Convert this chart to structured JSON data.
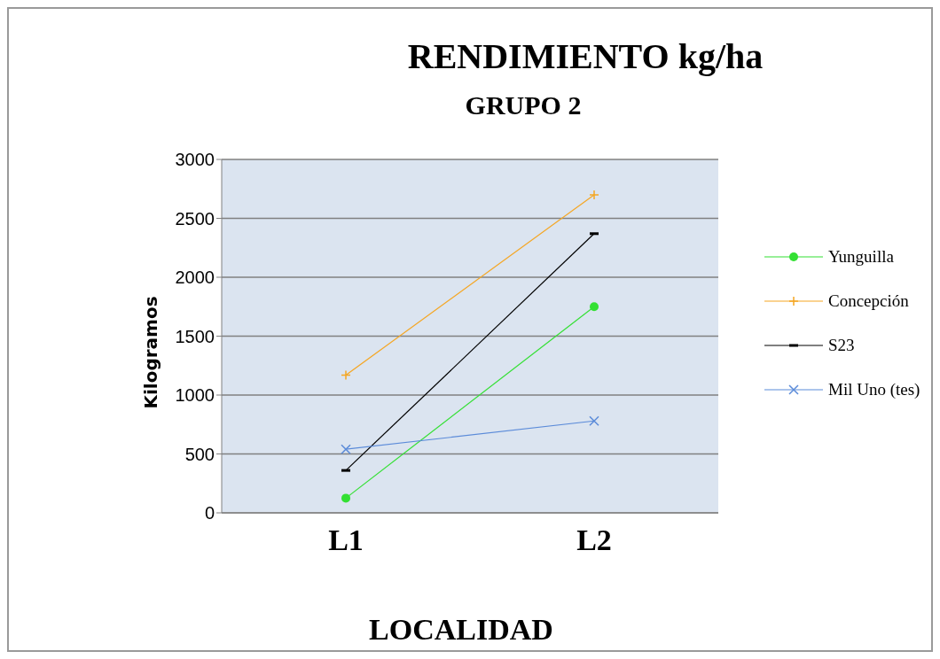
{
  "chart_data": {
    "type": "line",
    "title": "RENDIMIENTO kg/ha",
    "subtitle": "GRUPO 2",
    "xlabel": "LOCALIDAD",
    "ylabel": "Kilogramos",
    "categories": [
      "L1",
      "L2"
    ],
    "series": [
      {
        "name": "Yunguilla",
        "color": "#33e033",
        "values": [
          125,
          1750
        ],
        "marker": "circle"
      },
      {
        "name": "Concepción",
        "color": "#f5a623",
        "values": [
          1170,
          2700
        ],
        "marker": "cross"
      },
      {
        "name": "S23",
        "color": "#000000",
        "values": [
          360,
          2370
        ],
        "marker": "square"
      },
      {
        "name": "Mil Uno (tes)",
        "color": "#5b8bd9",
        "values": [
          540,
          780
        ],
        "marker": "x"
      }
    ],
    "ylim": [
      0,
      3000
    ],
    "yticks": [
      0,
      500,
      1000,
      1500,
      2000,
      2500,
      3000
    ],
    "grid": "y",
    "legend": "right"
  }
}
